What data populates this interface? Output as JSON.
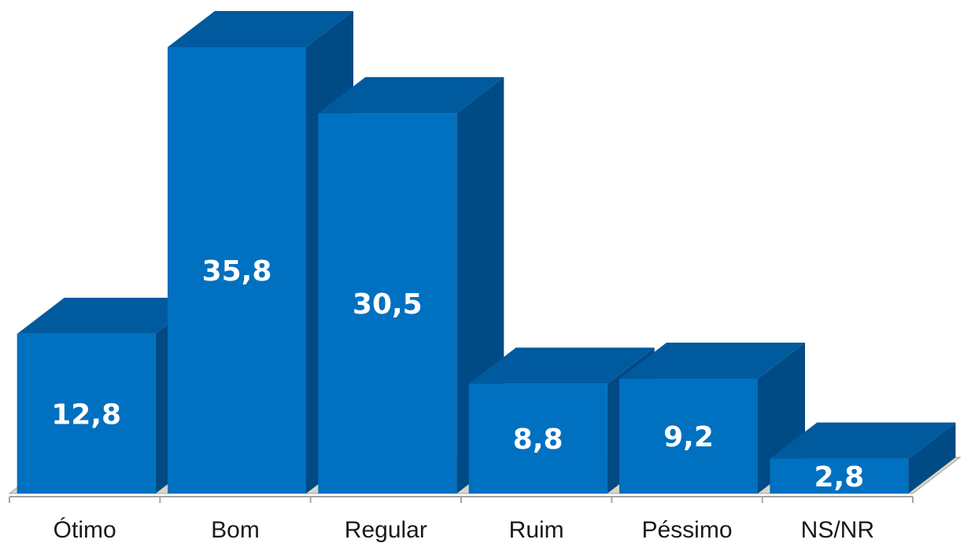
{
  "chart_data": {
    "type": "bar",
    "categories": [
      "Ótimo",
      "Bom",
      "Regular",
      "Ruim",
      "Péssimo",
      "NS/NR"
    ],
    "values": [
      12.8,
      35.8,
      30.5,
      8.8,
      9.2,
      2.8
    ],
    "value_labels": [
      "12,8",
      "35,8",
      "30,5",
      "8,8",
      "9,2",
      "2,8"
    ],
    "style": "3d-column",
    "grid": false,
    "legend": "none",
    "colors": {
      "front": "#0070C0",
      "top": "#005A9E",
      "side": "#004A85",
      "floor": "#D9D5C8",
      "floor_edge": "#A6A39A",
      "axis": "#A6A6A6"
    }
  }
}
